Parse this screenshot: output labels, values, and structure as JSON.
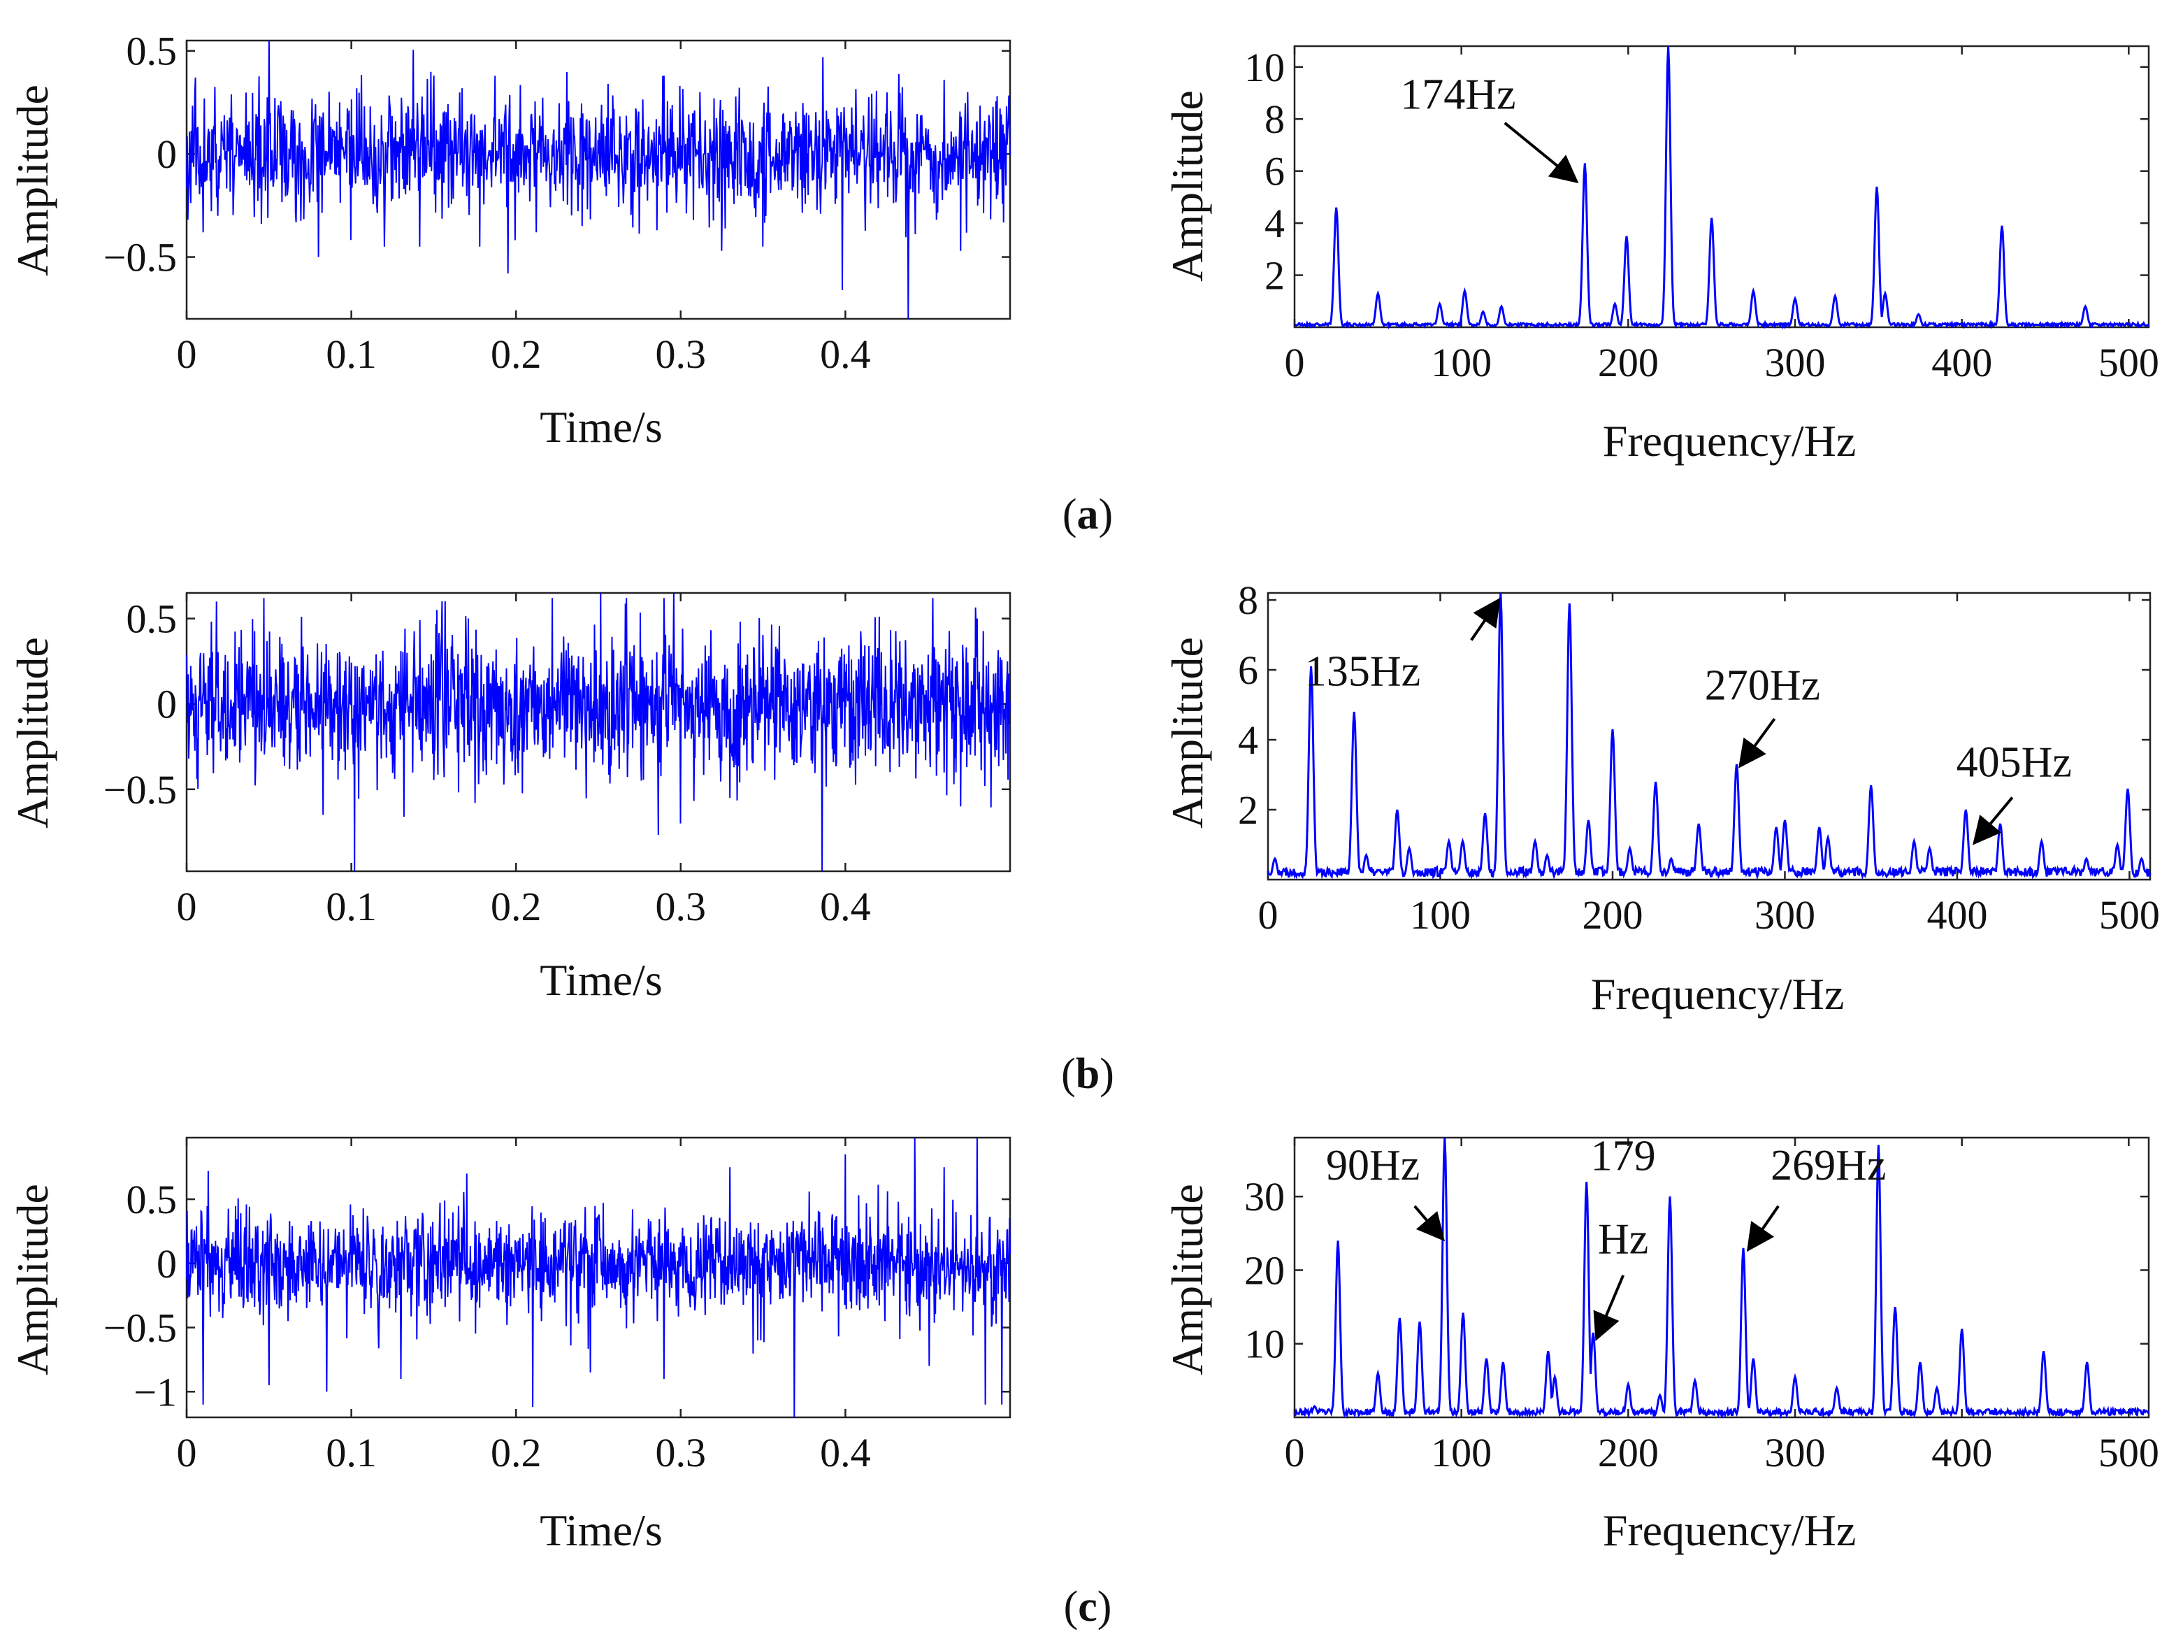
{
  "figure": {
    "line_color": "#0000ff",
    "annotation_color": "#000000"
  },
  "panels": [
    {
      "caption": "(a)",
      "caption_letter": "a",
      "time_chart": {
        "type": "line",
        "xlabel": "Time/s",
        "ylabel": "Amplitude",
        "xlim": [
          0,
          0.5
        ],
        "ylim": [
          -0.8,
          0.55
        ],
        "xticks": [
          0,
          0.1,
          0.2,
          0.3,
          0.4
        ],
        "xtick_labels": [
          "0",
          "0.1",
          "0.2",
          "0.3",
          "0.4"
        ],
        "yticks": [
          -0.5,
          0,
          0.5
        ],
        "ytick_labels": [
          "−0.5",
          "0",
          "0.5"
        ],
        "signal": {
          "n_points": 1400,
          "base_amplitude": 0.14,
          "seed": 11
        },
        "spikes": [
          {
            "t": 0.05,
            "v": 0.55
          },
          {
            "t": 0.398,
            "v": -0.66
          },
          {
            "t": 0.438,
            "v": -0.8
          },
          {
            "t": 0.08,
            "v": -0.5
          },
          {
            "t": 0.12,
            "v": -0.45
          },
          {
            "t": 0.178,
            "v": -0.45
          },
          {
            "t": 0.195,
            "v": -0.58
          },
          {
            "t": 0.325,
            "v": -0.47
          },
          {
            "t": 0.47,
            "v": -0.47
          },
          {
            "t": 0.15,
            "v": 0.38
          },
          {
            "t": 0.29,
            "v": 0.38
          },
          {
            "t": 0.46,
            "v": 0.36
          },
          {
            "t": 0.01,
            "v": -0.38
          },
          {
            "t": 0.35,
            "v": -0.45
          },
          {
            "t": 0.24,
            "v": -0.35
          },
          {
            "t": 0.256,
            "v": 0.34
          },
          {
            "t": 0.005,
            "v": 0.3
          }
        ]
      },
      "freq_chart": {
        "type": "line",
        "xlabel": "Frequency/Hz",
        "ylabel": "Amplitude",
        "xlim": [
          0,
          512
        ],
        "ylim": [
          0,
          10.8
        ],
        "xticks": [
          0,
          100,
          200,
          300,
          400,
          500
        ],
        "xtick_labels": [
          "0",
          "100",
          "200",
          "300",
          "400",
          "500"
        ],
        "yticks": [
          2,
          4,
          6,
          8,
          10
        ],
        "ytick_labels": [
          "2",
          "4",
          "6",
          "8",
          "10"
        ],
        "noise_level": 0.1,
        "seed": 21,
        "peaks": [
          {
            "f": 25,
            "a": 4.6
          },
          {
            "f": 50,
            "a": 1.3
          },
          {
            "f": 87,
            "a": 0.9
          },
          {
            "f": 102,
            "a": 1.4
          },
          {
            "f": 113,
            "a": 0.6
          },
          {
            "f": 124,
            "a": 0.8
          },
          {
            "f": 174,
            "a": 6.3
          },
          {
            "f": 192,
            "a": 0.9
          },
          {
            "f": 199,
            "a": 3.5
          },
          {
            "f": 224,
            "a": 10.8
          },
          {
            "f": 250,
            "a": 4.2
          },
          {
            "f": 275,
            "a": 1.4
          },
          {
            "f": 300,
            "a": 1.1
          },
          {
            "f": 324,
            "a": 1.2
          },
          {
            "f": 349,
            "a": 5.4
          },
          {
            "f": 354,
            "a": 1.3
          },
          {
            "f": 374,
            "a": 0.5
          },
          {
            "f": 424,
            "a": 3.9
          },
          {
            "f": 474,
            "a": 0.8
          }
        ],
        "annotations": [
          {
            "label": "174Hz",
            "text_f": 98,
            "text_y": 8.4,
            "tail_f": 126,
            "tail_y": 7.85,
            "head_f": 169,
            "head_y": 5.6
          }
        ]
      }
    },
    {
      "caption": "(b)",
      "caption_letter": "b",
      "time_chart": {
        "type": "line",
        "xlabel": "Time/s",
        "ylabel": "Amplitude",
        "xlim": [
          0,
          0.5
        ],
        "ylim": [
          -0.98,
          0.65
        ],
        "xticks": [
          0,
          0.1,
          0.2,
          0.3,
          0.4
        ],
        "xtick_labels": [
          "0",
          "0.1",
          "0.2",
          "0.3",
          "0.4"
        ],
        "yticks": [
          -0.5,
          0,
          0.5
        ],
        "ytick_labels": [
          "−0.5",
          "0",
          "0.5"
        ],
        "signal": {
          "n_points": 1600,
          "base_amplitude": 0.2,
          "seed": 12
        },
        "spikes": [
          {
            "t": 0.102,
            "v": -0.98
          },
          {
            "t": 0.386,
            "v": -0.98
          },
          {
            "t": 0.083,
            "v": -0.65
          },
          {
            "t": 0.047,
            "v": 0.62
          },
          {
            "t": 0.267,
            "v": 0.62
          },
          {
            "t": 0.29,
            "v": 0.62
          },
          {
            "t": 0.453,
            "v": 0.62
          },
          {
            "t": 0.222,
            "v": 0.62
          },
          {
            "t": 0.018,
            "v": 0.6
          },
          {
            "t": 0.3,
            "v": -0.7
          },
          {
            "t": 0.47,
            "v": -0.6
          },
          {
            "t": 0.152,
            "v": 0.55
          },
          {
            "t": 0.33,
            "v": -0.55
          },
          {
            "t": 0.175,
            "v": -0.58
          },
          {
            "t": 0.48,
            "v": 0.5
          }
        ]
      },
      "freq_chart": {
        "type": "line",
        "xlabel": "Frequency/Hz",
        "ylabel": "Amplitude",
        "xlim": [
          0,
          512
        ],
        "ylim": [
          0,
          8.2
        ],
        "xticks": [
          0,
          100,
          200,
          300,
          400,
          500
        ],
        "xtick_labels": [
          "0",
          "100",
          "200",
          "300",
          "400",
          "500"
        ],
        "yticks": [
          2,
          4,
          6,
          8
        ],
        "ytick_labels": [
          "2",
          "4",
          "6",
          "8"
        ],
        "noise_level": 0.22,
        "seed": 22,
        "peaks": [
          {
            "f": 4,
            "a": 0.6
          },
          {
            "f": 25,
            "a": 6.1
          },
          {
            "f": 50,
            "a": 4.8
          },
          {
            "f": 57,
            "a": 0.7
          },
          {
            "f": 75,
            "a": 2.0
          },
          {
            "f": 82,
            "a": 0.9
          },
          {
            "f": 105,
            "a": 1.1
          },
          {
            "f": 113,
            "a": 1.1
          },
          {
            "f": 126,
            "a": 1.9
          },
          {
            "f": 135,
            "a": 8.2
          },
          {
            "f": 155,
            "a": 1.1
          },
          {
            "f": 162,
            "a": 0.7
          },
          {
            "f": 175,
            "a": 7.9
          },
          {
            "f": 186,
            "a": 1.7
          },
          {
            "f": 200,
            "a": 4.3
          },
          {
            "f": 210,
            "a": 0.9
          },
          {
            "f": 225,
            "a": 2.8
          },
          {
            "f": 234,
            "a": 0.6
          },
          {
            "f": 250,
            "a": 1.6
          },
          {
            "f": 272,
            "a": 3.3
          },
          {
            "f": 295,
            "a": 1.5
          },
          {
            "f": 300,
            "a": 1.7
          },
          {
            "f": 320,
            "a": 1.5
          },
          {
            "f": 325,
            "a": 1.2
          },
          {
            "f": 350,
            "a": 2.7
          },
          {
            "f": 375,
            "a": 1.1
          },
          {
            "f": 384,
            "a": 0.9
          },
          {
            "f": 405,
            "a": 2.0
          },
          {
            "f": 425,
            "a": 1.6
          },
          {
            "f": 449,
            "a": 1.1
          },
          {
            "f": 475,
            "a": 0.6
          },
          {
            "f": 493,
            "a": 1.0
          },
          {
            "f": 499,
            "a": 2.6
          },
          {
            "f": 507,
            "a": 0.6
          }
        ],
        "annotations": [
          {
            "label": "135Hz",
            "text_f": 55,
            "text_y": 5.55,
            "tail_f": 118,
            "tail_y": 6.85,
            "head_f": 134,
            "head_y": 8.0
          },
          {
            "label": "270Hz",
            "text_f": 287,
            "text_y": 5.15,
            "tail_f": 294,
            "tail_y": 4.6,
            "head_f": 274,
            "head_y": 3.25
          },
          {
            "label": "405Hz",
            "text_f": 433,
            "text_y": 2.95,
            "tail_f": 432,
            "tail_y": 2.35,
            "head_f": 410,
            "head_y": 1.05
          }
        ]
      }
    },
    {
      "caption": "(c)",
      "caption_letter": "c",
      "time_chart": {
        "type": "line",
        "xlabel": "Time/s",
        "ylabel": "Amplitude",
        "xlim": [
          0,
          0.5
        ],
        "ylim": [
          -1.2,
          0.98
        ],
        "xticks": [
          0,
          0.1,
          0.2,
          0.3,
          0.4
        ],
        "xtick_labels": [
          "0",
          "0.1",
          "0.2",
          "0.3",
          "0.4"
        ],
        "yticks": [
          -1,
          -0.5,
          0,
          0.5
        ],
        "ytick_labels": [
          "−1",
          "−0.5",
          "0",
          "0.5"
        ],
        "signal": {
          "n_points": 1600,
          "base_amplitude": 0.2,
          "seed": 13
        },
        "spikes": [
          {
            "t": 0.369,
            "v": -1.2
          },
          {
            "t": 0.01,
            "v": -1.1
          },
          {
            "t": 0.21,
            "v": -1.12
          },
          {
            "t": 0.485,
            "v": -1.1
          },
          {
            "t": 0.495,
            "v": -1.1
          },
          {
            "t": 0.085,
            "v": -1.0
          },
          {
            "t": 0.442,
            "v": 0.98
          },
          {
            "t": 0.48,
            "v": 0.98
          },
          {
            "t": 0.4,
            "v": 0.85
          },
          {
            "t": 0.46,
            "v": 0.75
          },
          {
            "t": 0.13,
            "v": -0.9
          },
          {
            "t": 0.29,
            "v": -0.9
          },
          {
            "t": 0.33,
            "v": 0.75
          },
          {
            "t": 0.05,
            "v": -0.95
          },
          {
            "t": 0.245,
            "v": -0.85
          },
          {
            "t": 0.17,
            "v": 0.7
          },
          {
            "t": 0.013,
            "v": 0.72
          }
        ]
      },
      "freq_chart": {
        "type": "line",
        "xlabel": "Frequency/Hz",
        "ylabel": "Amplitude",
        "xlim": [
          0,
          512
        ],
        "ylim": [
          0,
          38
        ],
        "xticks": [
          0,
          100,
          200,
          300,
          400,
          500
        ],
        "xtick_labels": [
          "0",
          "100",
          "200",
          "300",
          "400",
          "500"
        ],
        "yticks": [
          10,
          20,
          30
        ],
        "ytick_labels": [
          "10",
          "20",
          "30"
        ],
        "noise_level": 0.7,
        "seed": 23,
        "peaks": [
          {
            "f": 12,
            "a": 1.5
          },
          {
            "f": 26,
            "a": 24
          },
          {
            "f": 50,
            "a": 6
          },
          {
            "f": 63,
            "a": 13.5
          },
          {
            "f": 75,
            "a": 13
          },
          {
            "f": 90,
            "a": 38
          },
          {
            "f": 101,
            "a": 14.2
          },
          {
            "f": 115,
            "a": 8
          },
          {
            "f": 125,
            "a": 7.5
          },
          {
            "f": 152,
            "a": 9
          },
          {
            "f": 156,
            "a": 5.5
          },
          {
            "f": 175,
            "a": 32
          },
          {
            "f": 179,
            "a": 11.5
          },
          {
            "f": 200,
            "a": 4.5
          },
          {
            "f": 219,
            "a": 3
          },
          {
            "f": 225,
            "a": 30
          },
          {
            "f": 240,
            "a": 5
          },
          {
            "f": 269,
            "a": 23
          },
          {
            "f": 275,
            "a": 8
          },
          {
            "f": 300,
            "a": 5.5
          },
          {
            "f": 325,
            "a": 4
          },
          {
            "f": 350,
            "a": 37
          },
          {
            "f": 360,
            "a": 15
          },
          {
            "f": 375,
            "a": 7.5
          },
          {
            "f": 385,
            "a": 4
          },
          {
            "f": 400,
            "a": 12
          },
          {
            "f": 449,
            "a": 9
          },
          {
            "f": 475,
            "a": 7.5
          }
        ],
        "annotations": [
          {
            "label": "90Hz",
            "text_f": 47,
            "text_y": 32.3,
            "tail_f": 72,
            "tail_y": 28.7,
            "head_f": 89,
            "head_y": 24.2
          },
          {
            "label": "179",
            "text_f": 197,
            "text_y": 33.6,
            "tail_f": 0,
            "tail_y": 0,
            "head_f": 0,
            "head_y": 0
          },
          {
            "label": "Hz",
            "text_f": 197,
            "text_y": 22.3,
            "tail_f": 197,
            "tail_y": 19.3,
            "head_f": 181,
            "head_y": 10.7
          },
          {
            "label": "269Hz",
            "text_f": 320,
            "text_y": 32.3,
            "tail_f": 290,
            "tail_y": 28.7,
            "head_f": 272,
            "head_y": 22.8
          }
        ]
      }
    }
  ]
}
